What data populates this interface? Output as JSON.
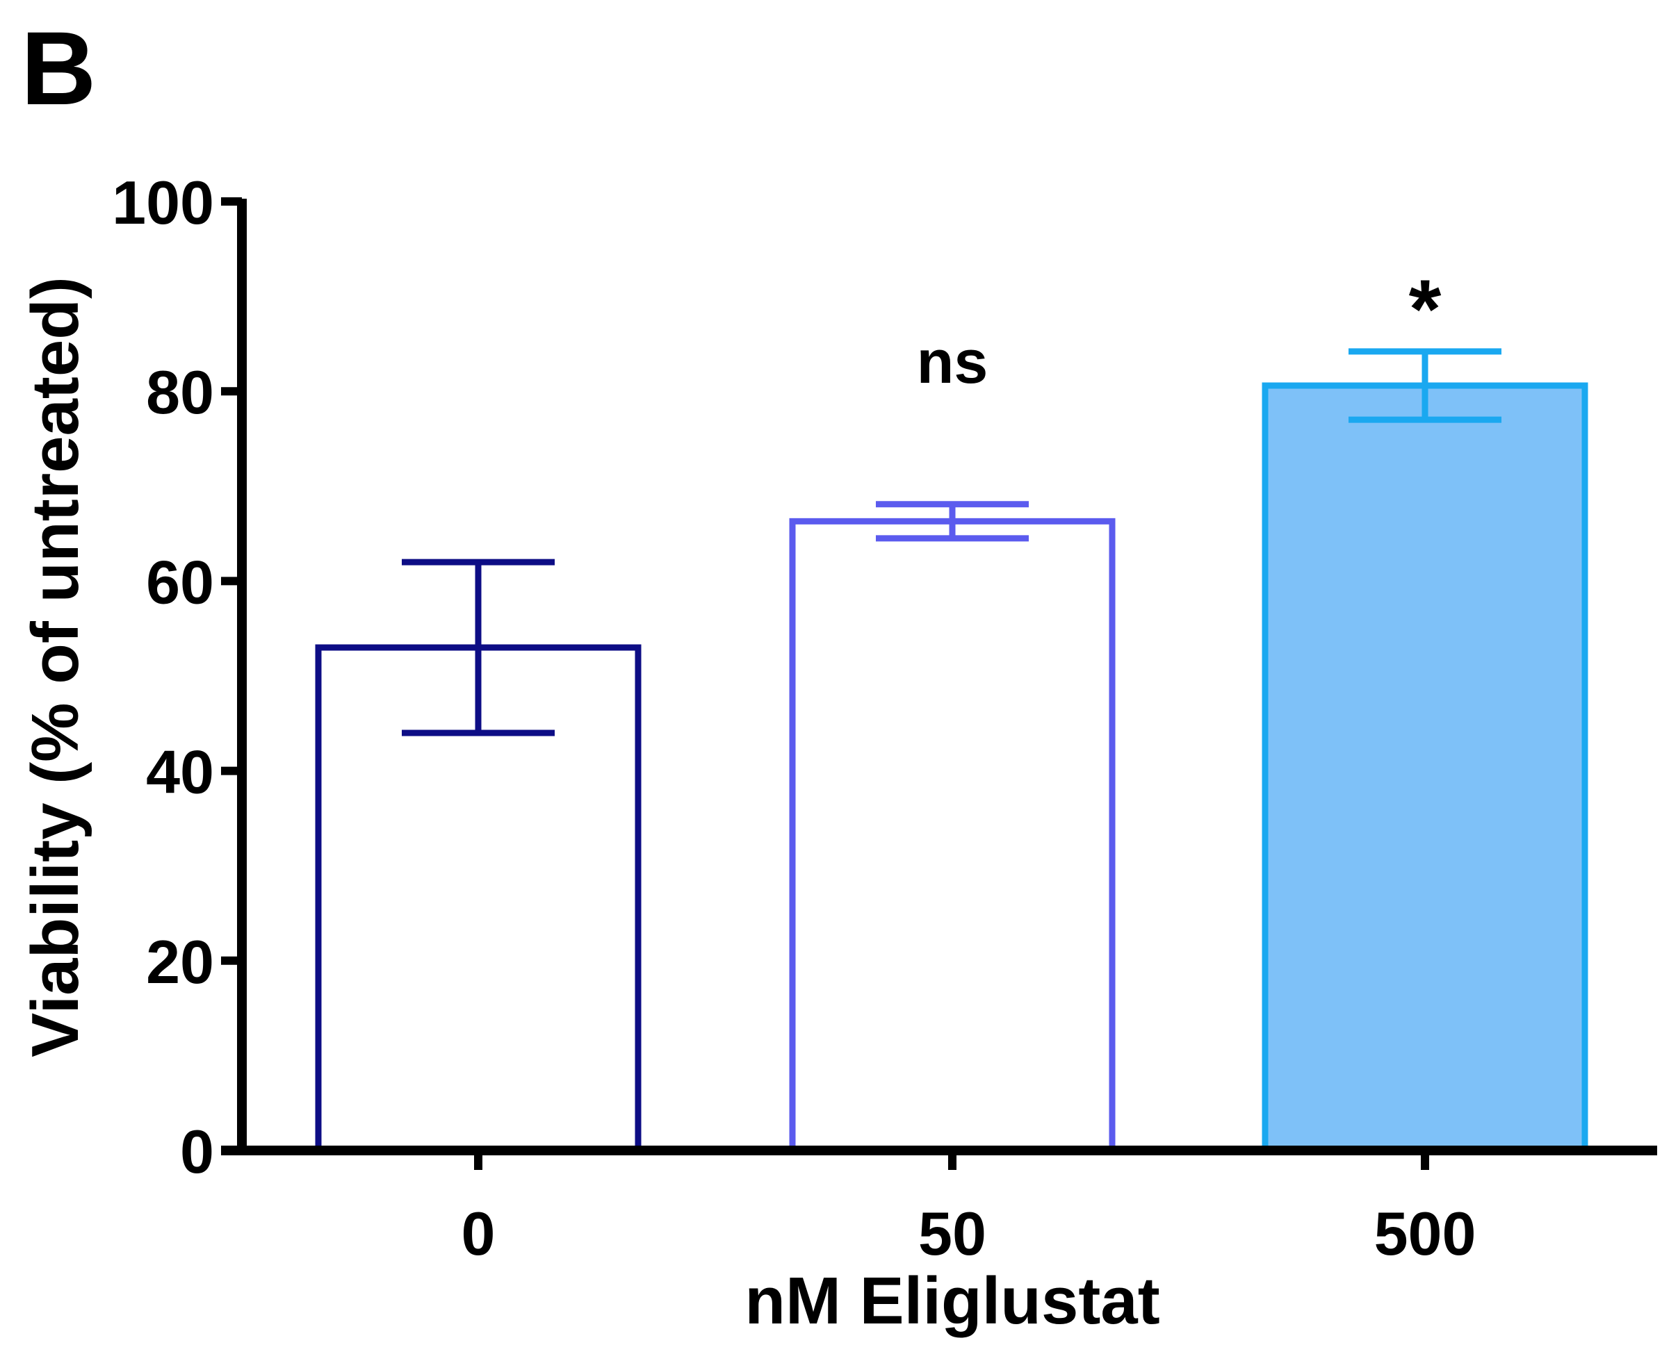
{
  "panel_label": "B",
  "chart_data": {
    "type": "bar",
    "categories": [
      "0",
      "50",
      "500"
    ],
    "values": [
      53,
      66.3,
      80.6
    ],
    "error": [
      9,
      1.8,
      3.6
    ],
    "annotations": [
      "",
      "ns",
      "*"
    ],
    "xlabel": "nM Eliglustat",
    "ylabel": "Viability (% of untreated)",
    "ylim": [
      0,
      100
    ],
    "yticks": [
      "0",
      "20",
      "40",
      "60",
      "80",
      "100"
    ],
    "grid": false,
    "legend": "none",
    "colors": {
      "bar_0_stroke": "#0d0d85",
      "bar_0_fill": "#ffffff",
      "bar_1_stroke": "#5b5bee",
      "bar_1_fill": "#ffffff",
      "bar_2_stroke": "#1aa8f0",
      "bar_2_fill": "#7ec1f8",
      "axis": "#000000"
    }
  }
}
